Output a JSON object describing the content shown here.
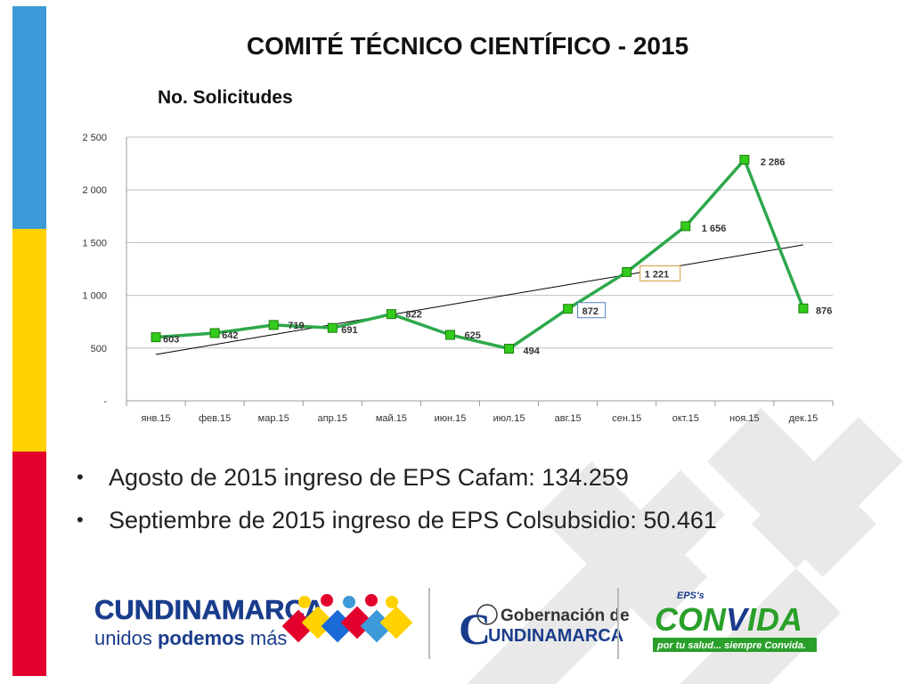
{
  "slide": {
    "title": "COMITÉ TÉCNICO CIENTÍFICO - 2015",
    "subtitle": "No. Solicitudes",
    "bullets": [
      "Agosto de 2015 ingreso de EPS Cafam: 134.259",
      "Septiembre de 2015 ingreso de EPS Colsubsidio: 50.461"
    ],
    "bullet_glyph": "•"
  },
  "colors": {
    "flag_blue": "#3d9ad8",
    "flag_yellow": "#ffd200",
    "flag_red": "#e3002c",
    "series_line": "#2da84a",
    "marker_fill": "#33cc1a",
    "marker_stroke": "#1e7a10",
    "trend": "#000000",
    "grid": "#bfbfbf",
    "callout_blue": "#4f81bd",
    "callout_orange": "#d99a3a"
  },
  "chart_data": {
    "type": "line",
    "categories": [
      "янв.15",
      "фев.15",
      "мар.15",
      "апр.15",
      "май.15",
      "июн.15",
      "июл.15",
      "авг.15",
      "сен.15",
      "окт.15",
      "ноя.15",
      "дек.15"
    ],
    "series": [
      {
        "values": [
          603,
          642,
          719,
          691,
          822,
          625,
          494,
          872,
          1221,
          1656,
          2286,
          876
        ],
        "labels": [
          "603",
          "642",
          "719",
          "691",
          "822",
          "625",
          "494",
          "872",
          "1 221",
          "1 656",
          "2 286",
          "876"
        ],
        "marker": "square"
      }
    ],
    "trendline": "linear",
    "ylim": [
      0,
      2500
    ],
    "yticks": [
      0,
      500,
      1000,
      1500,
      2000,
      2500
    ],
    "ytick_labels": [
      "-",
      "500",
      "1 000",
      "1 500",
      "2 000",
      "2 500"
    ],
    "grid": true,
    "boxed_labels": [
      {
        "index": 7,
        "color_key": "callout_blue"
      },
      {
        "index": 8,
        "color_key": "callout_orange"
      }
    ]
  },
  "footer": {
    "logo1_line1": "CUNDINAMARCA",
    "logo1_line2_a": "unidos ",
    "logo1_line2_b": "podemos",
    "logo1_line2_c": " más",
    "logo2_line1": "Gobernación de",
    "logo2_line2": "UNDINAMARCA",
    "logo2_initial": "C",
    "logo3_top": "EPS's",
    "logo3_main_a": "CON",
    "logo3_main_b": "IDA",
    "logo3_tagline": "por tu salud... siempre Convida."
  }
}
